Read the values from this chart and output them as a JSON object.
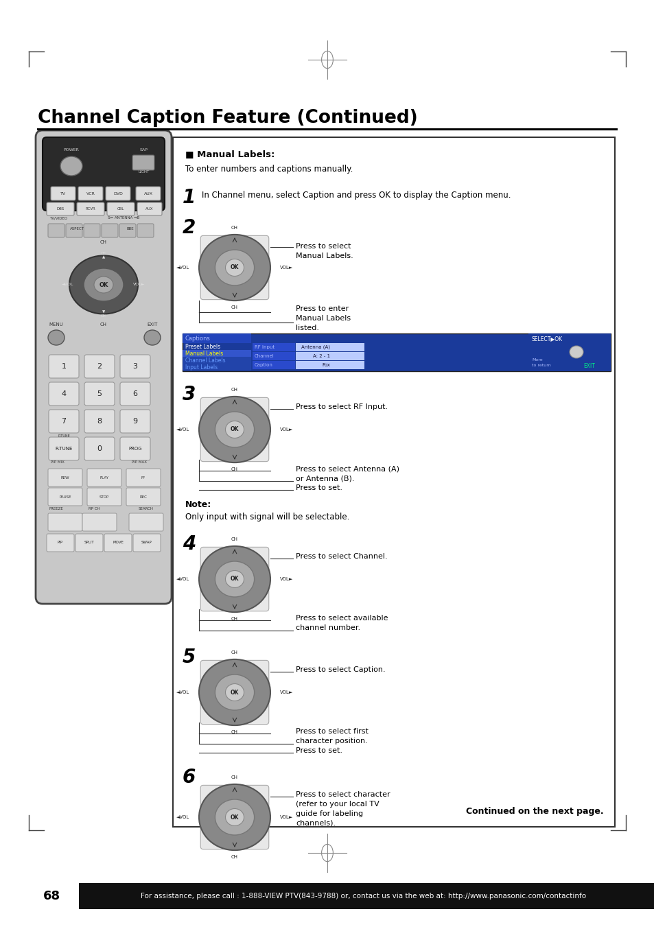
{
  "title": "Channel Caption Feature (Continued)",
  "bg_color": "#ffffff",
  "page_number": "68",
  "footer_text": "For assistance, please call : 1-888-VIEW PTV(843-9788) or, contact us via the web at: http://www.panasonic.com/contactinfo",
  "section_title": "■ Manual Labels:",
  "section_subtitle": "To enter numbers and captions manually.",
  "step1_text": "In Channel menu, select Caption and press OK to display the Caption menu.",
  "step2_line1": "Press to select",
  "step2_line2": "Manual Labels.",
  "step2_line3": "Press to enter",
  "step2_line4": "Manual Labels",
  "step2_line5": "listed.",
  "step3_line1": "Press to select RF Input.",
  "step3_line2": "Press to select Antenna (A)",
  "step3_line3": "or Antenna (B).",
  "step3_line4": "Press to set.",
  "note_title": "Note:",
  "note_text": "Only input with signal will be selectable.",
  "step4_line1": "Press to select Channel.",
  "step4_line2": "Press to select available",
  "step4_line3": "channel number.",
  "step5_line1": "Press to select Caption.",
  "step5_line2": "Press to select first",
  "step5_line3": "character position.",
  "step5_line4": "Press to set.",
  "step6_line1": "Press to select character",
  "step6_line2": "(refer to your local TV",
  "step6_line3": "guide for labeling",
  "step6_line4": "channels).",
  "continued_text": "Continued on the next page."
}
